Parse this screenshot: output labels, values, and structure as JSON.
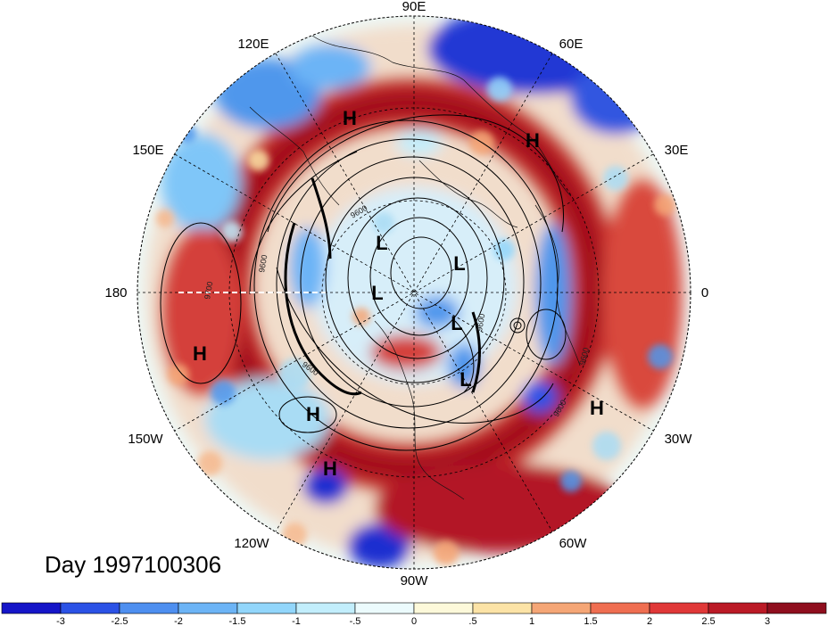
{
  "title": "Day 1997100306",
  "longitude_labels": [
    "90E",
    "60E",
    "30E",
    "0",
    "30W",
    "60W",
    "90W",
    "120W",
    "150W",
    "180",
    "150E",
    "120E"
  ],
  "pressure_centers": {
    "highs": [
      "H",
      "H",
      "H",
      "H",
      "H",
      "H"
    ],
    "lows": [
      "L",
      "L",
      "L",
      "L",
      "L"
    ]
  },
  "contour_labels": [
    "9600",
    "9600",
    "9600",
    "9600",
    "9700",
    "9600",
    "9600"
  ],
  "colorbar": {
    "ticks": [
      "-3",
      "-2.5",
      "-2",
      "-1.5",
      "-1",
      "-.5",
      "0",
      ".5",
      "1",
      "1.5",
      "2",
      "2.5",
      "3"
    ],
    "colors": [
      "#1515c8",
      "#2b52e6",
      "#4e8ff0",
      "#6cb4f6",
      "#92d6fb",
      "#c2eefc",
      "#ecfbfd",
      "#fdf9da",
      "#fce3a6",
      "#f5a676",
      "#ef6e51",
      "#e03838",
      "#bb1a26",
      "#8f0e1e"
    ]
  },
  "colors": {
    "strong_positive": "#b31626",
    "positive": "#e2503c",
    "weak_positive": "#f6b88c",
    "neutral": "#eef8f6",
    "weak_negative": "#a9dcf4",
    "negative": "#4f97ec",
    "strong_negative": "#1e2fd0"
  }
}
